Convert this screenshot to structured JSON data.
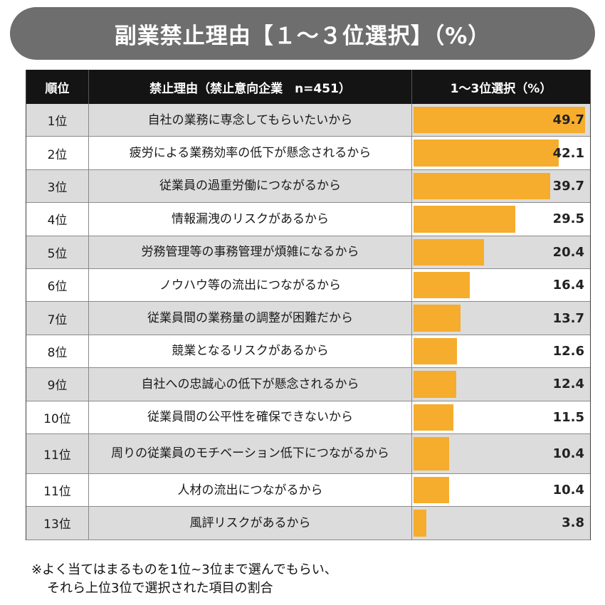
{
  "title": "副業禁止理由【１～３位選択】（%）",
  "headers": {
    "rank": "順位",
    "reason": "禁止理由（禁止意向企業　n=451）",
    "value": "1～3位選択（%）"
  },
  "chart_data": {
    "type": "bar",
    "xlim": [
      0,
      50
    ],
    "categories": [
      "自社の業務に専念してもらいたいから",
      "疲労による業務効率の低下が懸念されるから",
      "従業員の過重労働につながるから",
      "情報漏洩のリスクがあるから",
      "労務管理等の事務管理が煩雑になるから",
      "ノウハウ等の流出につながるから",
      "従業員間の業務量の調整が困難だから",
      "競業となるリスクがあるから",
      "自社への忠誠心の低下が懸念されるから",
      "従業員間の公平性を確保できないから",
      "周りの従業員のモチベーション低下につながるから",
      "人材の流出につながるから",
      "風評リスクがあるから"
    ],
    "ranks": [
      "1位",
      "2位",
      "3位",
      "4位",
      "5位",
      "6位",
      "7位",
      "8位",
      "9位",
      "10位",
      "11位",
      "11位",
      "13位"
    ],
    "values": [
      49.7,
      42.1,
      39.7,
      29.5,
      20.4,
      16.4,
      13.7,
      12.6,
      12.4,
      11.5,
      10.4,
      10.4,
      3.8
    ],
    "bar_color": "#f6ac2c"
  },
  "footnote": {
    "line1": "※よく当てはまるものを1位~3位まで選んでもらい、",
    "line2": "それら上位3位で選択された項目の割合"
  },
  "colors": {
    "title_bg": "#6e6e6e",
    "header_bg": "#141414",
    "row_shade": "#dcdcdc"
  }
}
